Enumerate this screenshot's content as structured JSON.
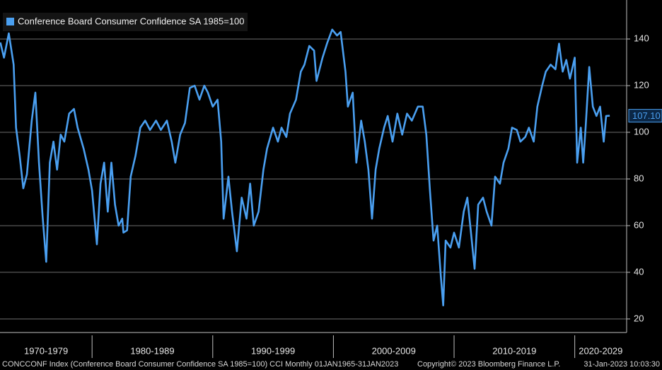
{
  "chart_data": {
    "type": "line",
    "legend": "top-left",
    "grid": true,
    "ylim": [
      14.2,
      156.7
    ],
    "yticks": [
      20,
      40,
      60,
      80,
      100,
      120,
      140
    ],
    "xlim": [
      1972.37,
      2024.3
    ],
    "xticks": [
      1980,
      1990,
      2000,
      2010,
      2020
    ],
    "x_labels": [
      "1970-1979",
      "1980-1989",
      "1990-1999",
      "2000-2009",
      "2010-2019",
      "2020-2029"
    ],
    "last_label": {
      "value": 107.1,
      "label": "107.10"
    },
    "footer": {
      "description": "CONCCONF Index (Conference Board Consumer Confidence SA 1985=100) CCI  Monthly 01JAN1965-31JAN2023",
      "copyright": "Copyright© 2023 Bloomberg Finance L.P.",
      "timestamp": "31-Jan-2023 10:03:30"
    },
    "x": [
      1972.4,
      1972.7,
      1973.1,
      1973.5,
      1973.7,
      1974.0,
      1974.3,
      1974.6,
      1975.0,
      1975.3,
      1975.6,
      1975.9,
      1976.2,
      1976.5,
      1976.8,
      1977.1,
      1977.4,
      1977.7,
      1978.1,
      1978.5,
      1978.8,
      1979.3,
      1979.7,
      1980.0,
      1980.4,
      1980.7,
      1981.0,
      1981.3,
      1981.6,
      1981.9,
      1982.2,
      1982.5,
      1982.6,
      1982.9,
      1983.2,
      1983.6,
      1984.0,
      1984.4,
      1984.8,
      1985.3,
      1985.7,
      1986.2,
      1986.6,
      1986.9,
      1987.3,
      1987.7,
      1988.1,
      1988.5,
      1988.9,
      1989.3,
      1989.6,
      1990.0,
      1990.4,
      1990.7,
      1990.9,
      1991.3,
      1991.6,
      1992.0,
      1992.4,
      1992.8,
      1993.1,
      1993.4,
      1993.8,
      1994.2,
      1994.5,
      1995.0,
      1995.4,
      1995.7,
      1996.1,
      1996.4,
      1996.9,
      1997.3,
      1997.6,
      1998.0,
      1998.4,
      1998.6,
      1999.1,
      1999.5,
      1999.9,
      2000.3,
      2000.6,
      2001.0,
      2001.2,
      2001.6,
      2001.9,
      2002.3,
      2002.6,
      2002.9,
      2003.2,
      2003.5,
      2003.8,
      2004.2,
      2004.5,
      2004.9,
      2005.3,
      2005.7,
      2006.1,
      2006.5,
      2007.0,
      2007.4,
      2007.7,
      2008.0,
      2008.3,
      2008.6,
      2008.9,
      2009.1,
      2009.3,
      2009.7,
      2010.0,
      2010.4,
      2010.8,
      2011.1,
      2011.4,
      2011.7,
      2012.0,
      2012.4,
      2012.7,
      2013.1,
      2013.4,
      2013.8,
      2014.1,
      2014.5,
      2014.8,
      2015.2,
      2015.5,
      2015.9,
      2016.2,
      2016.6,
      2016.9,
      2017.3,
      2017.6,
      2018.0,
      2018.4,
      2018.7,
      2019.0,
      2019.3,
      2019.6,
      2020.0,
      2020.2,
      2020.5,
      2020.7,
      2020.9,
      2021.2,
      2021.5,
      2021.8,
      2022.1,
      2022.4,
      2022.6,
      2022.9
    ],
    "series": [
      {
        "name": "Conference Board Consumer Confidence SA 1985=100",
        "color": "#4a9ff0",
        "values": [
          138.5,
          132,
          142.4,
          129,
          102,
          90,
          76,
          82,
          105,
          117,
          87,
          64,
          44.5,
          87,
          96,
          84,
          99,
          96,
          108,
          110,
          102,
          93,
          84,
          75,
          52,
          78,
          87,
          66,
          87,
          69,
          60,
          63,
          57,
          58,
          81,
          90,
          102,
          105,
          101,
          105,
          101,
          105,
          96,
          87,
          99,
          104,
          119,
          120,
          114,
          120,
          117,
          111,
          114,
          96,
          63,
          81,
          66,
          49,
          72,
          63,
          78,
          60,
          66,
          84,
          93,
          102,
          96,
          102,
          98,
          108,
          114,
          126,
          129,
          137,
          135,
          122,
          132,
          138.5,
          144,
          141.5,
          143,
          126,
          111,
          117,
          87,
          105,
          96,
          84,
          63,
          84,
          93,
          102,
          107,
          96,
          108,
          99,
          108,
          105,
          111,
          111,
          99,
          75,
          53.6,
          60,
          38.5,
          25.8,
          53.6,
          50.6,
          57,
          50.6,
          66,
          72,
          57,
          41.5,
          69,
          72,
          66,
          60,
          81,
          78,
          87,
          93,
          102,
          101,
          96,
          98,
          102,
          96,
          111,
          120,
          126,
          129,
          127,
          138,
          126,
          131,
          123,
          132,
          87,
          102,
          87,
          102,
          128,
          111,
          107,
          111,
          96,
          107,
          107.1
        ]
      }
    ]
  }
}
